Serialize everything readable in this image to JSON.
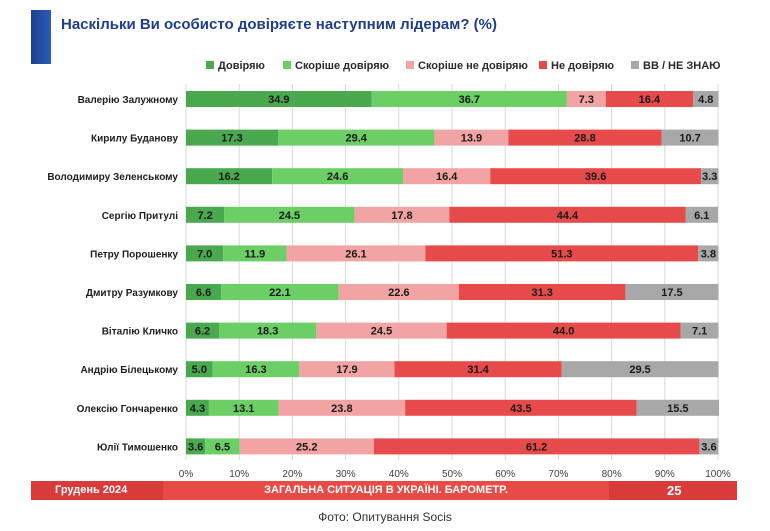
{
  "title": "Наскільки Ви особисто довіряєте наступним лідерам? (%)",
  "chart_data": {
    "type": "bar",
    "orientation": "horizontal",
    "stacked": true,
    "categories": [
      "Валерію Залужному",
      "Кирилу Буданову",
      "Володимиру Зеленському",
      "Сергію Притулі",
      "Петру Порошенку",
      "Дмитру Разумкову",
      "Віталію Кличко",
      "Андрію Білецькому",
      "Олексію Гончаренко",
      "Юлії Тимошенко"
    ],
    "series": [
      {
        "name": "Довіряю",
        "color": "#4aa84e",
        "values": [
          34.9,
          17.3,
          16.2,
          7.2,
          7.0,
          6.6,
          6.2,
          5.0,
          4.3,
          3.6
        ]
      },
      {
        "name": "Скоріше довіряю",
        "color": "#6bcf66",
        "values": [
          36.7,
          29.4,
          24.6,
          24.5,
          11.9,
          22.1,
          18.3,
          16.3,
          13.1,
          6.5
        ]
      },
      {
        "name": "Скоріше не довіряю",
        "color": "#f2a3a3",
        "values": [
          7.3,
          13.9,
          16.4,
          17.8,
          26.1,
          22.6,
          24.5,
          17.9,
          23.8,
          25.2
        ]
      },
      {
        "name": "Не довіряю",
        "color": "#e64a4a",
        "values": [
          16.4,
          28.8,
          39.6,
          44.4,
          51.3,
          31.3,
          44.0,
          31.4,
          43.5,
          61.2
        ]
      },
      {
        "name": "ВВ / НЕ ЗНАЮ",
        "color": "#a8a8a8",
        "values": [
          4.8,
          10.7,
          3.3,
          6.1,
          3.8,
          17.5,
          7.1,
          29.5,
          15.5,
          3.6
        ]
      }
    ],
    "xlim": [
      0,
      100
    ],
    "xticks": [
      "0%",
      "10%",
      "20%",
      "30%",
      "40%",
      "50%",
      "60%",
      "70%",
      "80%",
      "90%",
      "100%"
    ],
    "grid": true,
    "legend_position": "top"
  },
  "footer": {
    "date": "Грудень 2024",
    "section": "ЗАГАЛЬНА СИТУАЦІЯ В УКРАЇНІ. БАРОМЕТР.",
    "page": "25"
  },
  "caption": "Фото: Опитування Socis"
}
